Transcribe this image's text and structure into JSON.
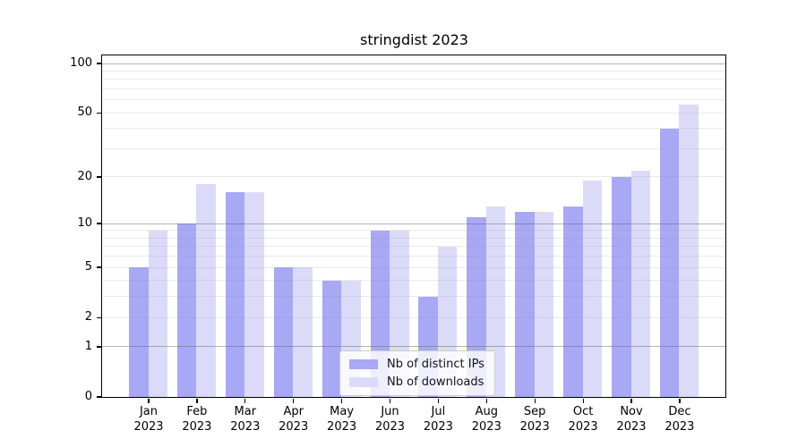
{
  "chart_data": {
    "type": "bar",
    "title": "stringdist 2023",
    "x_categories": [
      {
        "month": "Jan",
        "year": "2023"
      },
      {
        "month": "Feb",
        "year": "2023"
      },
      {
        "month": "Mar",
        "year": "2023"
      },
      {
        "month": "Apr",
        "year": "2023"
      },
      {
        "month": "May",
        "year": "2023"
      },
      {
        "month": "Jun",
        "year": "2023"
      },
      {
        "month": "Jul",
        "year": "2023"
      },
      {
        "month": "Aug",
        "year": "2023"
      },
      {
        "month": "Sep",
        "year": "2023"
      },
      {
        "month": "Oct",
        "year": "2023"
      },
      {
        "month": "Nov",
        "year": "2023"
      },
      {
        "month": "Dec",
        "year": "2023"
      }
    ],
    "series": [
      {
        "name": "Nb of distinct IPs",
        "slug": "distinct-ips",
        "color": "#a8a8f5",
        "values": [
          5,
          10,
          16,
          5,
          4,
          9,
          3,
          11,
          12,
          13,
          20,
          40
        ]
      },
      {
        "name": "Nb of downloads",
        "slug": "downloads",
        "color": "#dbdbf9",
        "values": [
          9,
          18,
          16,
          5,
          4,
          9,
          7,
          13,
          12,
          19,
          22,
          56
        ]
      }
    ],
    "y_axis": {
      "scale": "log1p",
      "ticks": [
        100,
        50,
        20,
        10,
        5,
        2,
        1,
        0
      ],
      "range": [
        0,
        112
      ]
    },
    "grid": {
      "orientation": "horizontal",
      "major": [
        1,
        10,
        100
      ],
      "minor": [
        2,
        3,
        4,
        5,
        6,
        7,
        8,
        9,
        20,
        30,
        40,
        50,
        60,
        70,
        80,
        90
      ]
    },
    "legend": {
      "position": "lower center"
    }
  }
}
